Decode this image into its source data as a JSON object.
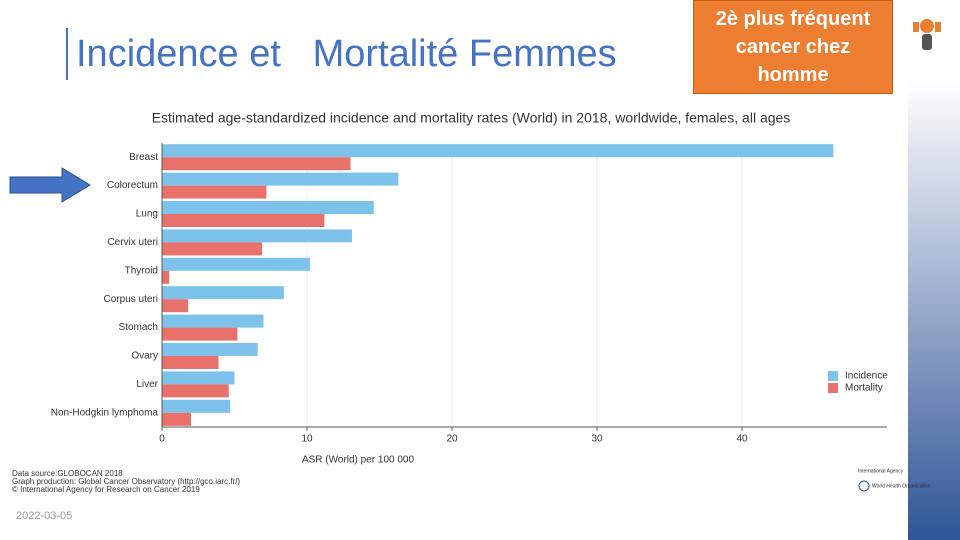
{
  "slide_title": "Incidence et   Mortalité Femmes",
  "callout": "2è plus fréquent cancer chez homme",
  "date": "2022-03-05",
  "source_lines": [
    "Data source:GLOBOCAN 2018",
    "Graph production: Global Cancer Observatory (http://gco.iarc.fr/)",
    "© International Agency for Research on Cancer 2019"
  ],
  "logos": [
    "International Agency",
    "World Health Organization"
  ],
  "chart_data": {
    "type": "hbar",
    "title": "Estimated age-standardized incidence and mortality rates (World) in 2018, worldwide, females, all ages",
    "xlabel": "ASR (World) per 100 000",
    "categories": [
      "Breast",
      "Colorectum",
      "Lung",
      "Cervix uteri",
      "Thyroid",
      "Corpus uteri",
      "Stomach",
      "Ovary",
      "Liver",
      "Non-Hodgkin lymphoma"
    ],
    "series": [
      {
        "name": "Incidence",
        "color": "#7cc2ea",
        "values": [
          46.3,
          16.3,
          14.6,
          13.1,
          10.2,
          8.4,
          7.0,
          6.6,
          5.0,
          4.7
        ]
      },
      {
        "name": "Mortality",
        "color": "#e8716b",
        "values": [
          13.0,
          7.2,
          11.2,
          6.9,
          0.5,
          1.8,
          5.2,
          3.9,
          4.6,
          2.0
        ]
      }
    ],
    "xlim": [
      0,
      50
    ],
    "xticks": [
      0,
      10,
      20,
      30,
      40
    ],
    "grid": true,
    "legend": "right"
  }
}
